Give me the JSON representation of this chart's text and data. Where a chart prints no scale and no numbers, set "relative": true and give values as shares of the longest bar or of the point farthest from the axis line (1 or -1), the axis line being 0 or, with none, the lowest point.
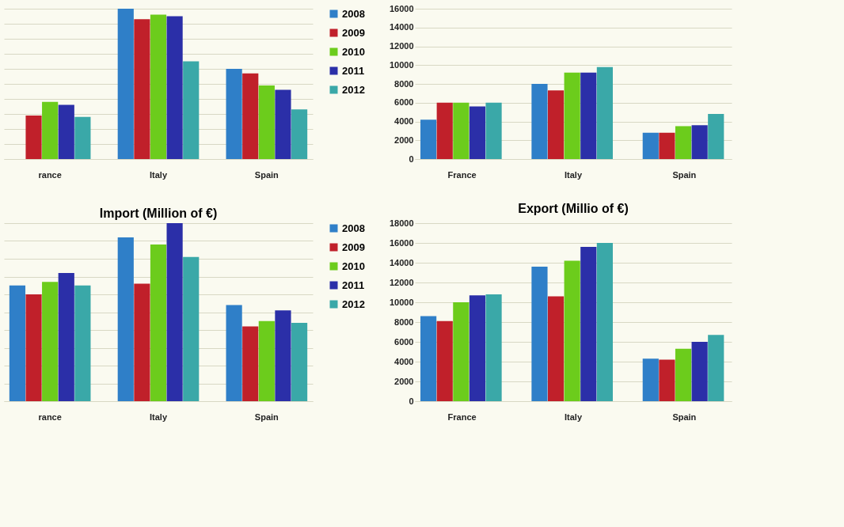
{
  "chart_data": [
    {
      "type": "bar",
      "relative": true,
      "categories": [
        "rance",
        "Italy",
        "Spain"
      ],
      "grid": true,
      "legend": "right",
      "tick_labels": "x",
      "series": [
        {
          "name": "2008",
          "color": "#2f7fc8",
          "values": [
            null,
            1,
            0.6
          ]
        },
        {
          "name": "2009",
          "color": "#c0202a",
          "values": [
            0.29,
            0.93,
            0.57
          ]
        },
        {
          "name": "2010",
          "color": "#6ccc1c",
          "values": [
            0.38,
            0.96,
            0.49
          ]
        },
        {
          "name": "2011",
          "color": "#2b2fa8",
          "values": [
            0.36,
            0.95,
            0.46
          ]
        },
        {
          "name": "2012",
          "color": "#3aa8a8",
          "values": [
            0.28,
            0.65,
            0.33
          ]
        }
      ]
    },
    {
      "type": "bar",
      "categories": [
        "France",
        "Italy",
        "Spain"
      ],
      "grid": true,
      "ylim": [
        0,
        16000
      ],
      "yticks": [
        0,
        2000,
        4000,
        6000,
        8000,
        10000,
        12000,
        14000,
        16000
      ],
      "series": [
        {
          "color": "#2f7fc8",
          "values": [
            4200,
            8000,
            2800
          ]
        },
        {
          "color": "#c0202a",
          "values": [
            6000,
            7300,
            2800
          ]
        },
        {
          "color": "#6ccc1c",
          "values": [
            6000,
            9200,
            3500
          ]
        },
        {
          "color": "#2b2fa8",
          "values": [
            5600,
            9200,
            3600
          ]
        },
        {
          "color": "#3aa8a8",
          "values": [
            6000,
            9800,
            4800
          ]
        }
      ]
    },
    {
      "type": "bar",
      "relative": true,
      "title": "Import (Million of €)",
      "categories": [
        "rance",
        "Italy",
        "Spain"
      ],
      "grid": true,
      "legend": "right",
      "tick_labels": "x",
      "series": [
        {
          "name": "2008",
          "color": "#2f7fc8",
          "values": [
            0.65,
            0.92,
            0.54
          ]
        },
        {
          "name": "2009",
          "color": "#c0202a",
          "values": [
            0.6,
            0.66,
            0.42
          ]
        },
        {
          "name": "2010",
          "color": "#6ccc1c",
          "values": [
            0.67,
            0.88,
            0.45
          ]
        },
        {
          "name": "2011",
          "color": "#2b2fa8",
          "values": [
            0.72,
            1,
            0.51
          ]
        },
        {
          "name": "2012",
          "color": "#3aa8a8",
          "values": [
            0.65,
            0.81,
            0.44
          ]
        }
      ]
    },
    {
      "type": "bar",
      "title": "Export (Millio of €)",
      "categories": [
        "France",
        "Italy",
        "Spain"
      ],
      "grid": true,
      "ylim": [
        0,
        18000
      ],
      "yticks": [
        0,
        2000,
        4000,
        6000,
        8000,
        10000,
        12000,
        14000,
        16000,
        18000
      ],
      "series": [
        {
          "color": "#2f7fc8",
          "values": [
            8600,
            13600,
            4300
          ]
        },
        {
          "color": "#c0202a",
          "values": [
            8100,
            10600,
            4200
          ]
        },
        {
          "color": "#6ccc1c",
          "values": [
            10000,
            14200,
            5300
          ]
        },
        {
          "color": "#2b2fa8",
          "values": [
            10700,
            15600,
            6000
          ]
        },
        {
          "color": "#3aa8a8",
          "values": [
            10800,
            16000,
            6700
          ]
        }
      ]
    }
  ]
}
